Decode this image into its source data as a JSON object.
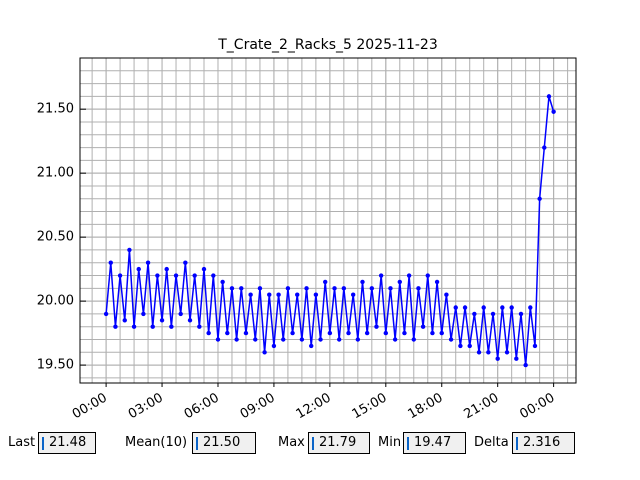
{
  "chart_data": {
    "type": "line",
    "title": "T_Crate_2_Racks_5 2025-11-23",
    "x": [
      0,
      0.25,
      0.5,
      0.75,
      1,
      1.25,
      1.5,
      1.75,
      2,
      2.25,
      2.5,
      2.75,
      3,
      3.25,
      3.5,
      3.75,
      4,
      4.25,
      4.5,
      4.75,
      5,
      5.25,
      5.5,
      5.75,
      6,
      6.25,
      6.5,
      6.75,
      7,
      7.25,
      7.5,
      7.75,
      8,
      8.25,
      8.5,
      8.75,
      9,
      9.25,
      9.5,
      9.75,
      10,
      10.25,
      10.5,
      10.75,
      11,
      11.25,
      11.5,
      11.75,
      12,
      12.25,
      12.5,
      12.75,
      13,
      13.25,
      13.5,
      13.75,
      14,
      14.25,
      14.5,
      14.75,
      15,
      15.25,
      15.5,
      15.75,
      16,
      16.25,
      16.5,
      16.75,
      17,
      17.25,
      17.5,
      17.75,
      18,
      18.25,
      18.5,
      18.75,
      19,
      19.25,
      19.5,
      19.75,
      20,
      20.25,
      20.5,
      20.75,
      21,
      21.25,
      21.5,
      21.75,
      22,
      22.25,
      22.5,
      22.75,
      23,
      23.25,
      23.5,
      23.75,
      24
    ],
    "series": [
      {
        "name": "T_Crate_2_Racks_5",
        "color": "#0000ff",
        "values": [
          19.9,
          20.3,
          19.8,
          20.2,
          19.85,
          20.4,
          19.8,
          20.25,
          19.9,
          20.3,
          19.8,
          20.2,
          19.85,
          20.25,
          19.8,
          20.2,
          19.9,
          20.3,
          19.85,
          20.2,
          19.8,
          20.25,
          19.75,
          20.2,
          19.7,
          20.15,
          19.75,
          20.1,
          19.7,
          20.1,
          19.75,
          20.05,
          19.7,
          20.1,
          19.6,
          20.05,
          19.65,
          20.05,
          19.7,
          20.1,
          19.75,
          20.05,
          19.7,
          20.1,
          19.65,
          20.05,
          19.7,
          20.15,
          19.75,
          20.1,
          19.7,
          20.1,
          19.75,
          20.05,
          19.7,
          20.15,
          19.75,
          20.1,
          19.8,
          20.2,
          19.75,
          20.1,
          19.7,
          20.15,
          19.75,
          20.2,
          19.7,
          20.1,
          19.8,
          20.2,
          19.75,
          20.15,
          19.75,
          20.05,
          19.7,
          19.95,
          19.65,
          19.95,
          19.65,
          19.9,
          19.6,
          19.95,
          19.6,
          19.9,
          19.55,
          19.95,
          19.6,
          19.95,
          19.55,
          19.9,
          19.5,
          19.95,
          19.65,
          20.8,
          21.2,
          21.6,
          21.48
        ]
      }
    ],
    "xlim": [
      -1.4,
      25.2
    ],
    "xticks": [
      {
        "value": 0,
        "label": "00:00"
      },
      {
        "value": 3,
        "label": "03:00"
      },
      {
        "value": 6,
        "label": "06:00"
      },
      {
        "value": 9,
        "label": "09:00"
      },
      {
        "value": 12,
        "label": "12:00"
      },
      {
        "value": 15,
        "label": "15:00"
      },
      {
        "value": 18,
        "label": "18:00"
      },
      {
        "value": 21,
        "label": "21:00"
      },
      {
        "value": 24,
        "label": "00:00"
      }
    ],
    "ylim": [
      19.36,
      21.9
    ],
    "yticks": [
      {
        "value": 19.5,
        "label": "19.50"
      },
      {
        "value": 20,
        "label": "20.00"
      },
      {
        "value": 20.5,
        "label": "20.50"
      },
      {
        "value": 21,
        "label": "21.00"
      },
      {
        "value": 21.5,
        "label": "21.50"
      }
    ],
    "grid": true,
    "minor_grid": {
      "x": 0.75,
      "y": 0.1
    }
  },
  "stats": [
    {
      "label": "Last",
      "value": "21.48"
    },
    {
      "label": "Mean(10)",
      "value": "21.50"
    },
    {
      "label": "Max",
      "value": "21.79"
    },
    {
      "label": "Min",
      "value": "19.47"
    },
    {
      "label": "Delta",
      "value": "2.316"
    }
  ]
}
